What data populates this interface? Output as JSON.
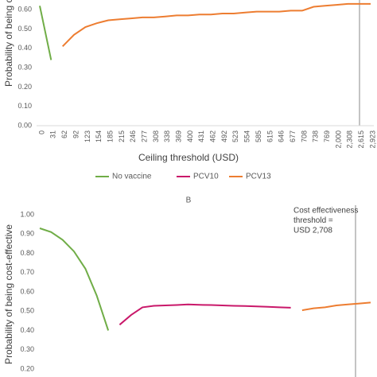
{
  "chart_data": [
    {
      "type": "line",
      "y_label": "Probability of being cost-effective",
      "x_label": "Ceiling threshold (USD)",
      "categories": [
        "0",
        "31",
        "62",
        "92",
        "123",
        "154",
        "185",
        "215",
        "246",
        "277",
        "308",
        "338",
        "369",
        "400",
        "431",
        "462",
        "492",
        "523",
        "554",
        "585",
        "615",
        "646",
        "677",
        "708",
        "738",
        "769",
        "2,000",
        "2,308",
        "2,615",
        "2,923"
      ],
      "ylim": [
        0,
        0.65
      ],
      "yticks": [
        {
          "value": 0,
          "label": "0.00"
        },
        {
          "value": 0.1,
          "label": "0.10"
        },
        {
          "value": 0.2,
          "label": "0.20"
        },
        {
          "value": 0.3,
          "label": "0.30"
        },
        {
          "value": 0.4,
          "label": "0.40"
        },
        {
          "value": 0.5,
          "label": "0.50"
        },
        {
          "value": 0.6,
          "label": "0.60"
        }
      ],
      "legend": "bottom",
      "series": [
        {
          "name": "No vaccine",
          "color": "#70ad47",
          "values": [
            0.62,
            0.34,
            null,
            null,
            null,
            null,
            null,
            null,
            null,
            null,
            null,
            null,
            null,
            null,
            null,
            null,
            null,
            null,
            null,
            null,
            null,
            null,
            null,
            null,
            null,
            null,
            null,
            null,
            null,
            null
          ]
        },
        {
          "name": "PCV10",
          "color": "#c9186a",
          "values": [
            null,
            null,
            null,
            null,
            null,
            null,
            null,
            null,
            null,
            null,
            null,
            null,
            null,
            null,
            null,
            null,
            null,
            null,
            null,
            null,
            null,
            null,
            null,
            null,
            null,
            null,
            null,
            null,
            null,
            null
          ]
        },
        {
          "name": "PCV13",
          "color": "#ed7d31",
          "values": [
            null,
            null,
            0.41,
            0.47,
            0.51,
            0.53,
            0.545,
            0.55,
            0.555,
            0.56,
            0.56,
            0.565,
            0.57,
            0.57,
            0.575,
            0.575,
            0.58,
            0.58,
            0.585,
            0.59,
            0.59,
            0.59,
            0.595,
            0.595,
            0.615,
            0.62,
            0.625,
            0.63,
            0.63,
            0.63
          ]
        }
      ]
    },
    {
      "type": "line",
      "title": "B",
      "y_label": "Probability of being cost-effective",
      "annotation": [
        "Cost effectiveness",
        "threshold =",
        "USD 2,708"
      ],
      "categories": [
        null,
        null,
        null,
        null,
        null,
        null,
        null,
        null,
        null,
        null,
        null,
        null,
        null,
        null,
        null,
        null,
        null,
        null,
        null,
        null,
        null,
        null,
        null,
        null,
        null,
        null,
        null,
        null,
        null,
        null
      ],
      "ylim": [
        0.18,
        1.04
      ],
      "yticks": [
        {
          "value": 0.2,
          "label": "0.20"
        },
        {
          "value": 0.3,
          "label": "0.30"
        },
        {
          "value": 0.4,
          "label": "0.40"
        },
        {
          "value": 0.5,
          "label": "0.50"
        },
        {
          "value": 0.6,
          "label": "0.60"
        },
        {
          "value": 0.7,
          "label": "0.70"
        },
        {
          "value": 0.8,
          "label": "0.80"
        },
        {
          "value": 0.9,
          "label": "0.90"
        },
        {
          "value": 1.0,
          "label": "1.00"
        }
      ],
      "series": [
        {
          "color": "#70ad47",
          "values": [
            0.93,
            0.91,
            0.87,
            0.81,
            0.72,
            0.58,
            0.4,
            null,
            null,
            null,
            null,
            null,
            null,
            null,
            null,
            null,
            null,
            null,
            null,
            null,
            null,
            null,
            null,
            null,
            null,
            null,
            null,
            null,
            null,
            null
          ]
        },
        {
          "color": "#c9186a",
          "values": [
            null,
            null,
            null,
            null,
            null,
            null,
            null,
            0.43,
            0.48,
            0.52,
            0.528,
            0.53,
            0.532,
            0.535,
            0.533,
            0.532,
            0.53,
            0.528,
            0.527,
            0.525,
            0.523,
            0.52,
            0.518,
            null,
            null,
            null,
            null,
            null,
            null,
            null
          ]
        },
        {
          "color": "#ed7d31",
          "values": [
            null,
            null,
            null,
            null,
            null,
            null,
            null,
            null,
            null,
            null,
            null,
            null,
            null,
            null,
            null,
            null,
            null,
            null,
            null,
            null,
            null,
            null,
            null,
            0.505,
            0.515,
            0.52,
            0.53,
            0.535,
            0.54,
            0.545
          ]
        }
      ]
    }
  ]
}
